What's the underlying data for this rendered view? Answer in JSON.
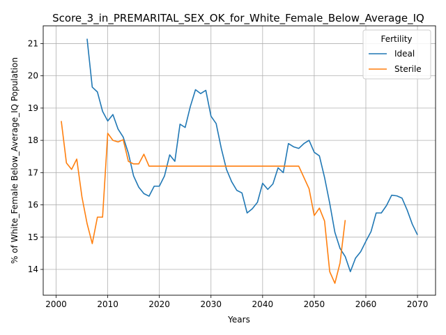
{
  "chart_data": {
    "type": "line",
    "title": "Score_3_in_PREMARITAL_SEX_OK_for_White_Female_Below_Average_IQ",
    "xlabel": "Years",
    "ylabel": "% of White_Female Below_Average_IQ Population",
    "xlim": [
      1997.5,
      2073.5
    ],
    "ylim": [
      13.2,
      21.55
    ],
    "xticks": [
      2000,
      2010,
      2020,
      2030,
      2040,
      2050,
      2060,
      2070
    ],
    "yticks": [
      14,
      15,
      16,
      17,
      18,
      19,
      20,
      21
    ],
    "grid": true,
    "legend": {
      "title": "Fertility",
      "position": "top-right"
    },
    "series": [
      {
        "name": "Ideal",
        "color": "#1f77b4",
        "x": [
          2006,
          2007,
          2008,
          2009,
          2010,
          2011,
          2012,
          2013,
          2014,
          2015,
          2016,
          2017,
          2018,
          2019,
          2020,
          2021,
          2022,
          2023,
          2024,
          2025,
          2026,
          2027,
          2028,
          2029,
          2030,
          2031,
          2032,
          2033,
          2034,
          2035,
          2036,
          2037,
          2038,
          2039,
          2040,
          2041,
          2042,
          2043,
          2044,
          2045,
          2046,
          2047,
          2048,
          2049,
          2050,
          2051,
          2052,
          2053,
          2054,
          2055,
          2056,
          2057,
          2058,
          2059,
          2060,
          2061,
          2062,
          2063,
          2064,
          2065,
          2066,
          2067,
          2068,
          2069,
          2070
        ],
        "values": [
          21.15,
          19.65,
          19.5,
          18.9,
          18.6,
          18.8,
          18.35,
          18.1,
          17.6,
          16.9,
          16.55,
          16.35,
          16.27,
          16.58,
          16.58,
          16.9,
          17.55,
          17.35,
          18.5,
          18.4,
          19.05,
          19.57,
          19.45,
          19.55,
          18.75,
          18.52,
          17.75,
          17.1,
          16.72,
          16.45,
          16.37,
          15.75,
          15.88,
          16.08,
          16.67,
          16.48,
          16.65,
          17.15,
          17.0,
          17.9,
          17.8,
          17.75,
          17.9,
          18.0,
          17.63,
          17.52,
          16.85,
          16.05,
          15.15,
          14.65,
          14.4,
          13.93,
          14.35,
          14.55,
          14.87,
          15.17,
          15.75,
          15.75,
          15.98,
          16.3,
          16.28,
          16.21,
          15.84,
          15.4,
          15.07
        ]
      },
      {
        "name": "Sterile",
        "color": "#ff7f0e",
        "x": [
          2001,
          2002,
          2003,
          2004,
          2005,
          2006,
          2007,
          2008,
          2009,
          2010,
          2011,
          2012,
          2013,
          2014,
          2015,
          2016,
          2017,
          2018,
          2019,
          2020,
          2021,
          2022,
          2023,
          2024,
          2025,
          2026,
          2027,
          2028,
          2029,
          2030,
          2031,
          2032,
          2033,
          2034,
          2035,
          2036,
          2037,
          2038,
          2039,
          2040,
          2041,
          2042,
          2043,
          2044,
          2045,
          2046,
          2047,
          2048,
          2049,
          2050,
          2051,
          2052,
          2053,
          2054,
          2055,
          2056
        ],
        "values": [
          18.6,
          17.3,
          17.1,
          17.42,
          16.25,
          15.42,
          14.8,
          15.62,
          15.62,
          18.22,
          18.0,
          17.95,
          18.02,
          17.35,
          17.27,
          17.27,
          17.57,
          17.2,
          17.2,
          17.2,
          17.2,
          17.2,
          17.2,
          17.2,
          17.2,
          17.2,
          17.2,
          17.2,
          17.2,
          17.2,
          17.2,
          17.2,
          17.2,
          17.2,
          17.2,
          17.2,
          17.2,
          17.2,
          17.2,
          17.2,
          17.2,
          17.2,
          17.2,
          17.2,
          17.2,
          17.2,
          17.2,
          16.85,
          16.5,
          15.67,
          15.9,
          15.5,
          13.93,
          13.57,
          14.2,
          15.53
        ]
      }
    ]
  }
}
